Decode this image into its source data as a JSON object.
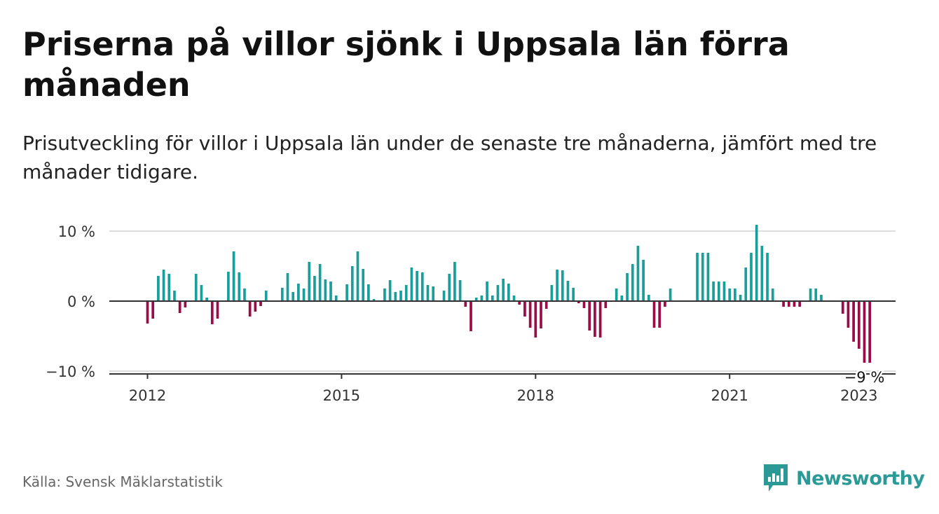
{
  "title": "Priserna på villor sjönk i Uppsala län förra månaden",
  "subtitle": "Prisutveckling för villor i Uppsala län under de senaste tre månaderna, jämfört med tre månader tidigare.",
  "source": "Källa: Svensk Mäklarstatistik",
  "brand": {
    "name": "Newsworthy",
    "icon": "newsworthy-logo-icon",
    "color": "#2b9a97"
  },
  "colors": {
    "positive": "#1a9e9a",
    "negative": "#9b0b47",
    "axis": "#333333",
    "grid": "#dddddd"
  },
  "chart_data": {
    "type": "bar",
    "title": "",
    "xlabel": "",
    "ylabel": "",
    "ylim": [
      -10,
      10
    ],
    "y_ticks": [
      {
        "value": 10,
        "label": "10 %"
      },
      {
        "value": 0,
        "label": "0 %"
      },
      {
        "value": -10,
        "label": "−10 %"
      }
    ],
    "x_ticks": [
      {
        "month": "2012-01",
        "label": "2012"
      },
      {
        "month": "2015-01",
        "label": "2015"
      },
      {
        "month": "2018-01",
        "label": "2018"
      },
      {
        "month": "2021-01",
        "label": "2021"
      },
      {
        "month": "2023-01",
        "label": "2023"
      }
    ],
    "grid": true,
    "legend": "none",
    "annotation": {
      "month": "2023-02",
      "label": "−9 %"
    },
    "series": [
      {
        "points": [
          {
            "x": "2012-01",
            "y": -3.2
          },
          {
            "x": "2012-02",
            "y": -2.5
          },
          {
            "x": "2012-03",
            "y": 3.6
          },
          {
            "x": "2012-04",
            "y": 4.5
          },
          {
            "x": "2012-05",
            "y": 3.9
          },
          {
            "x": "2012-06",
            "y": 1.5
          },
          {
            "x": "2012-07",
            "y": -1.7
          },
          {
            "x": "2012-08",
            "y": -0.9
          },
          {
            "x": "2012-09",
            "y": 0
          },
          {
            "x": "2012-10",
            "y": 3.9
          },
          {
            "x": "2012-11",
            "y": 2.3
          },
          {
            "x": "2012-12",
            "y": 0.5
          },
          {
            "x": "2013-01",
            "y": -3.3
          },
          {
            "x": "2013-02",
            "y": -2.5
          },
          {
            "x": "2013-03",
            "y": 0
          },
          {
            "x": "2013-04",
            "y": 4.2
          },
          {
            "x": "2013-05",
            "y": 7.1
          },
          {
            "x": "2013-06",
            "y": 4.1
          },
          {
            "x": "2013-07",
            "y": 1.8
          },
          {
            "x": "2013-08",
            "y": -2.2
          },
          {
            "x": "2013-09",
            "y": -1.5
          },
          {
            "x": "2013-10",
            "y": -0.7
          },
          {
            "x": "2013-11",
            "y": 1.5
          },
          {
            "x": "2013-12",
            "y": 0
          },
          {
            "x": "2014-01",
            "y": 0
          },
          {
            "x": "2014-02",
            "y": 1.9
          },
          {
            "x": "2014-03",
            "y": 4.0
          },
          {
            "x": "2014-04",
            "y": 1.3
          },
          {
            "x": "2014-05",
            "y": 2.5
          },
          {
            "x": "2014-06",
            "y": 1.8
          },
          {
            "x": "2014-07",
            "y": 5.6
          },
          {
            "x": "2014-08",
            "y": 3.6
          },
          {
            "x": "2014-09",
            "y": 5.3
          },
          {
            "x": "2014-10",
            "y": 3.1
          },
          {
            "x": "2014-11",
            "y": 2.8
          },
          {
            "x": "2014-12",
            "y": 0.8
          },
          {
            "x": "2015-01",
            "y": 0
          },
          {
            "x": "2015-02",
            "y": 2.4
          },
          {
            "x": "2015-03",
            "y": 5.0
          },
          {
            "x": "2015-04",
            "y": 7.1
          },
          {
            "x": "2015-05",
            "y": 4.6
          },
          {
            "x": "2015-06",
            "y": 2.4
          },
          {
            "x": "2015-07",
            "y": 0.3
          },
          {
            "x": "2015-08",
            "y": 0
          },
          {
            "x": "2015-09",
            "y": 1.8
          },
          {
            "x": "2015-10",
            "y": 3.0
          },
          {
            "x": "2015-11",
            "y": 1.3
          },
          {
            "x": "2015-12",
            "y": 1.5
          },
          {
            "x": "2016-01",
            "y": 2.3
          },
          {
            "x": "2016-02",
            "y": 4.8
          },
          {
            "x": "2016-03",
            "y": 4.3
          },
          {
            "x": "2016-04",
            "y": 4.1
          },
          {
            "x": "2016-05",
            "y": 2.3
          },
          {
            "x": "2016-06",
            "y": 2.1
          },
          {
            "x": "2016-07",
            "y": 0
          },
          {
            "x": "2016-08",
            "y": 1.5
          },
          {
            "x": "2016-09",
            "y": 3.9
          },
          {
            "x": "2016-10",
            "y": 5.6
          },
          {
            "x": "2016-11",
            "y": 3.0
          },
          {
            "x": "2016-12",
            "y": -0.8
          },
          {
            "x": "2017-01",
            "y": -4.3
          },
          {
            "x": "2017-02",
            "y": 0.5
          },
          {
            "x": "2017-03",
            "y": 0.8
          },
          {
            "x": "2017-04",
            "y": 2.8
          },
          {
            "x": "2017-05",
            "y": 0.8
          },
          {
            "x": "2017-06",
            "y": 2.3
          },
          {
            "x": "2017-07",
            "y": 3.2
          },
          {
            "x": "2017-08",
            "y": 2.5
          },
          {
            "x": "2017-09",
            "y": 0.8
          },
          {
            "x": "2017-10",
            "y": -0.5
          },
          {
            "x": "2017-11",
            "y": -2.2
          },
          {
            "x": "2017-12",
            "y": -3.8
          },
          {
            "x": "2018-01",
            "y": -5.2
          },
          {
            "x": "2018-02",
            "y": -3.9
          },
          {
            "x": "2018-03",
            "y": -1.1
          },
          {
            "x": "2018-04",
            "y": 2.3
          },
          {
            "x": "2018-05",
            "y": 4.5
          },
          {
            "x": "2018-06",
            "y": 4.4
          },
          {
            "x": "2018-07",
            "y": 2.9
          },
          {
            "x": "2018-08",
            "y": 1.9
          },
          {
            "x": "2018-09",
            "y": -0.3
          },
          {
            "x": "2018-10",
            "y": -1.0
          },
          {
            "x": "2018-11",
            "y": -4.2
          },
          {
            "x": "2018-12",
            "y": -5.1
          },
          {
            "x": "2019-01",
            "y": -5.2
          },
          {
            "x": "2019-02",
            "y": -1.0
          },
          {
            "x": "2019-03",
            "y": 0
          },
          {
            "x": "2019-04",
            "y": 1.8
          },
          {
            "x": "2019-05",
            "y": 0.8
          },
          {
            "x": "2019-06",
            "y": 4.0
          },
          {
            "x": "2019-07",
            "y": 5.3
          },
          {
            "x": "2019-08",
            "y": 7.9
          },
          {
            "x": "2019-09",
            "y": 5.9
          },
          {
            "x": "2019-10",
            "y": 0.9
          },
          {
            "x": "2019-11",
            "y": -3.8
          },
          {
            "x": "2019-12",
            "y": -3.8
          },
          {
            "x": "2020-01",
            "y": -0.8
          },
          {
            "x": "2020-02",
            "y": 1.8
          },
          {
            "x": "2020-03",
            "y": 0
          },
          {
            "x": "2020-04",
            "y": 0
          },
          {
            "x": "2020-05",
            "y": 0
          },
          {
            "x": "2020-06",
            "y": 0
          },
          {
            "x": "2020-07",
            "y": 6.9
          },
          {
            "x": "2020-08",
            "y": 6.9
          },
          {
            "x": "2020-09",
            "y": 6.9
          },
          {
            "x": "2020-10",
            "y": 2.8
          },
          {
            "x": "2020-11",
            "y": 2.8
          },
          {
            "x": "2020-12",
            "y": 2.8
          },
          {
            "x": "2021-01",
            "y": 1.8
          },
          {
            "x": "2021-02",
            "y": 1.8
          },
          {
            "x": "2021-03",
            "y": 0.9
          },
          {
            "x": "2021-04",
            "y": 4.8
          },
          {
            "x": "2021-05",
            "y": 6.9
          },
          {
            "x": "2021-06",
            "y": 10.9
          },
          {
            "x": "2021-07",
            "y": 7.9
          },
          {
            "x": "2021-08",
            "y": 6.9
          },
          {
            "x": "2021-09",
            "y": 1.8
          },
          {
            "x": "2021-10",
            "y": 0
          },
          {
            "x": "2021-11",
            "y": -0.8
          },
          {
            "x": "2021-12",
            "y": -0.8
          },
          {
            "x": "2022-01",
            "y": -0.8
          },
          {
            "x": "2022-02",
            "y": -0.8
          },
          {
            "x": "2022-03",
            "y": 0
          },
          {
            "x": "2022-04",
            "y": 1.8
          },
          {
            "x": "2022-05",
            "y": 1.8
          },
          {
            "x": "2022-06",
            "y": 0.9
          },
          {
            "x": "2022-07",
            "y": 0
          },
          {
            "x": "2022-08",
            "y": 0
          },
          {
            "x": "2022-09",
            "y": 0
          },
          {
            "x": "2022-10",
            "y": -1.8
          },
          {
            "x": "2022-11",
            "y": -3.8
          },
          {
            "x": "2022-12",
            "y": -5.8
          },
          {
            "x": "2023-01",
            "y": -6.8
          },
          {
            "x": "2023-02",
            "y": -8.8
          },
          {
            "x": "2023-03",
            "y": -8.8
          }
        ]
      }
    ]
  }
}
